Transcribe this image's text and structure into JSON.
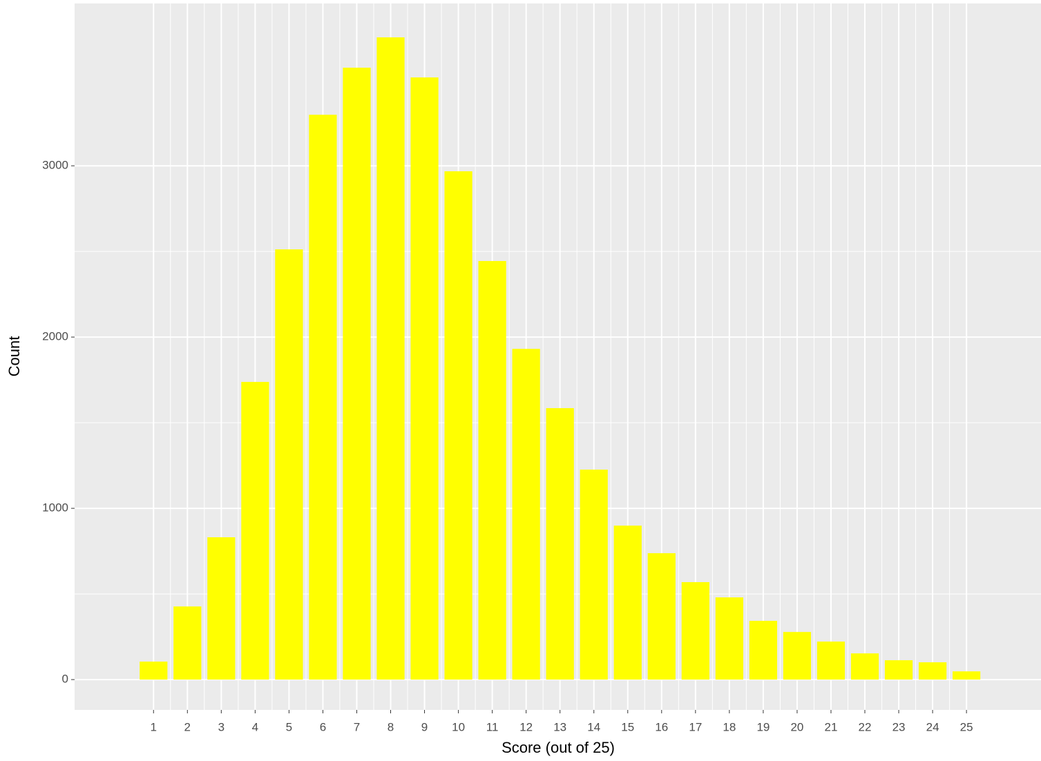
{
  "chart_data": {
    "type": "bar",
    "x_label": "Score (out of 25)",
    "y_label": "Count",
    "x": [
      1,
      2,
      3,
      4,
      5,
      6,
      7,
      8,
      9,
      10,
      11,
      12,
      13,
      14,
      15,
      16,
      17,
      18,
      19,
      20,
      21,
      22,
      23,
      24,
      25
    ],
    "values": [
      105,
      427,
      831,
      1738,
      2512,
      3298,
      3573,
      3750,
      3516,
      2968,
      2444,
      1931,
      1585,
      1226,
      899,
      738,
      569,
      480,
      343,
      278,
      222,
      153,
      113,
      101,
      48
    ],
    "color": "#ffff00",
    "xlim": [
      -1.33,
      27.2
    ],
    "xticks": [
      1,
      2,
      3,
      4,
      5,
      6,
      7,
      8,
      9,
      10,
      11,
      12,
      13,
      14,
      15,
      16,
      17,
      18,
      19,
      20,
      21,
      22,
      23,
      24,
      25
    ],
    "ylim": [
      -177,
      3948
    ],
    "yticks": [
      0,
      1000,
      2000,
      3000
    ],
    "grid": true
  }
}
